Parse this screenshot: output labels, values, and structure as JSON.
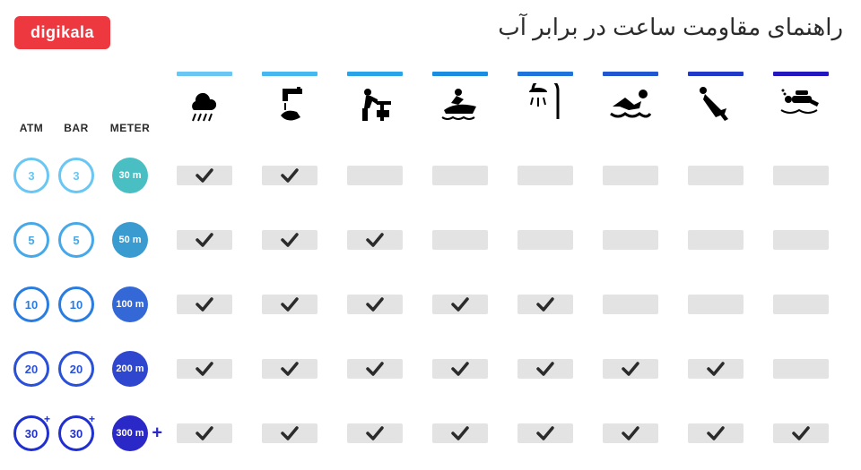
{
  "logo": "digikala",
  "logo_bg": "#ee3840",
  "title": "راهنمای مقاومت ساعت در برابر آب",
  "headers": {
    "atm": "ATM",
    "bar": "BAR",
    "meter": "METER"
  },
  "page_bg": "#ffffff",
  "slot_bg": "#e3e3e3",
  "check_color": "#2b2b2b",
  "activities": [
    {
      "name": "rain",
      "bar_color": "#6ac6f2"
    },
    {
      "name": "handwash",
      "bar_color": "#46b7ef"
    },
    {
      "name": "work",
      "bar_color": "#2ba3e8"
    },
    {
      "name": "jetski",
      "bar_color": "#1b8de0"
    },
    {
      "name": "shower",
      "bar_color": "#1f74db"
    },
    {
      "name": "swim",
      "bar_color": "#2057d0"
    },
    {
      "name": "dive",
      "bar_color": "#2238c6"
    },
    {
      "name": "scuba",
      "bar_color": "#2318bd"
    }
  ],
  "rows": [
    {
      "atm": "3",
      "bar": "3",
      "meter": "30 m",
      "ring_color": "#6ac6f2",
      "fill_color": "#49bfc4",
      "plus": false,
      "checks": [
        true,
        true,
        false,
        false,
        false,
        false,
        false,
        false
      ]
    },
    {
      "atm": "5",
      "bar": "5",
      "meter": "50 m",
      "ring_color": "#46a8e8",
      "fill_color": "#3a9bd0",
      "plus": false,
      "checks": [
        true,
        true,
        true,
        false,
        false,
        false,
        false,
        false
      ]
    },
    {
      "atm": "10",
      "bar": "10",
      "meter": "100 m",
      "ring_color": "#2a7de0",
      "fill_color": "#3468d6",
      "plus": false,
      "checks": [
        true,
        true,
        true,
        true,
        true,
        false,
        false,
        false
      ]
    },
    {
      "atm": "20",
      "bar": "20",
      "meter": "200 m",
      "ring_color": "#2a50d8",
      "fill_color": "#2f46cf",
      "plus": false,
      "checks": [
        true,
        true,
        true,
        true,
        true,
        true,
        true,
        false
      ]
    },
    {
      "atm": "30",
      "bar": "30",
      "meter": "300 m",
      "ring_color": "#2030cf",
      "fill_color": "#2a28c6",
      "plus": true,
      "plus_color": "#2a28c6",
      "checks": [
        true,
        true,
        true,
        true,
        true,
        true,
        true,
        true
      ]
    }
  ]
}
